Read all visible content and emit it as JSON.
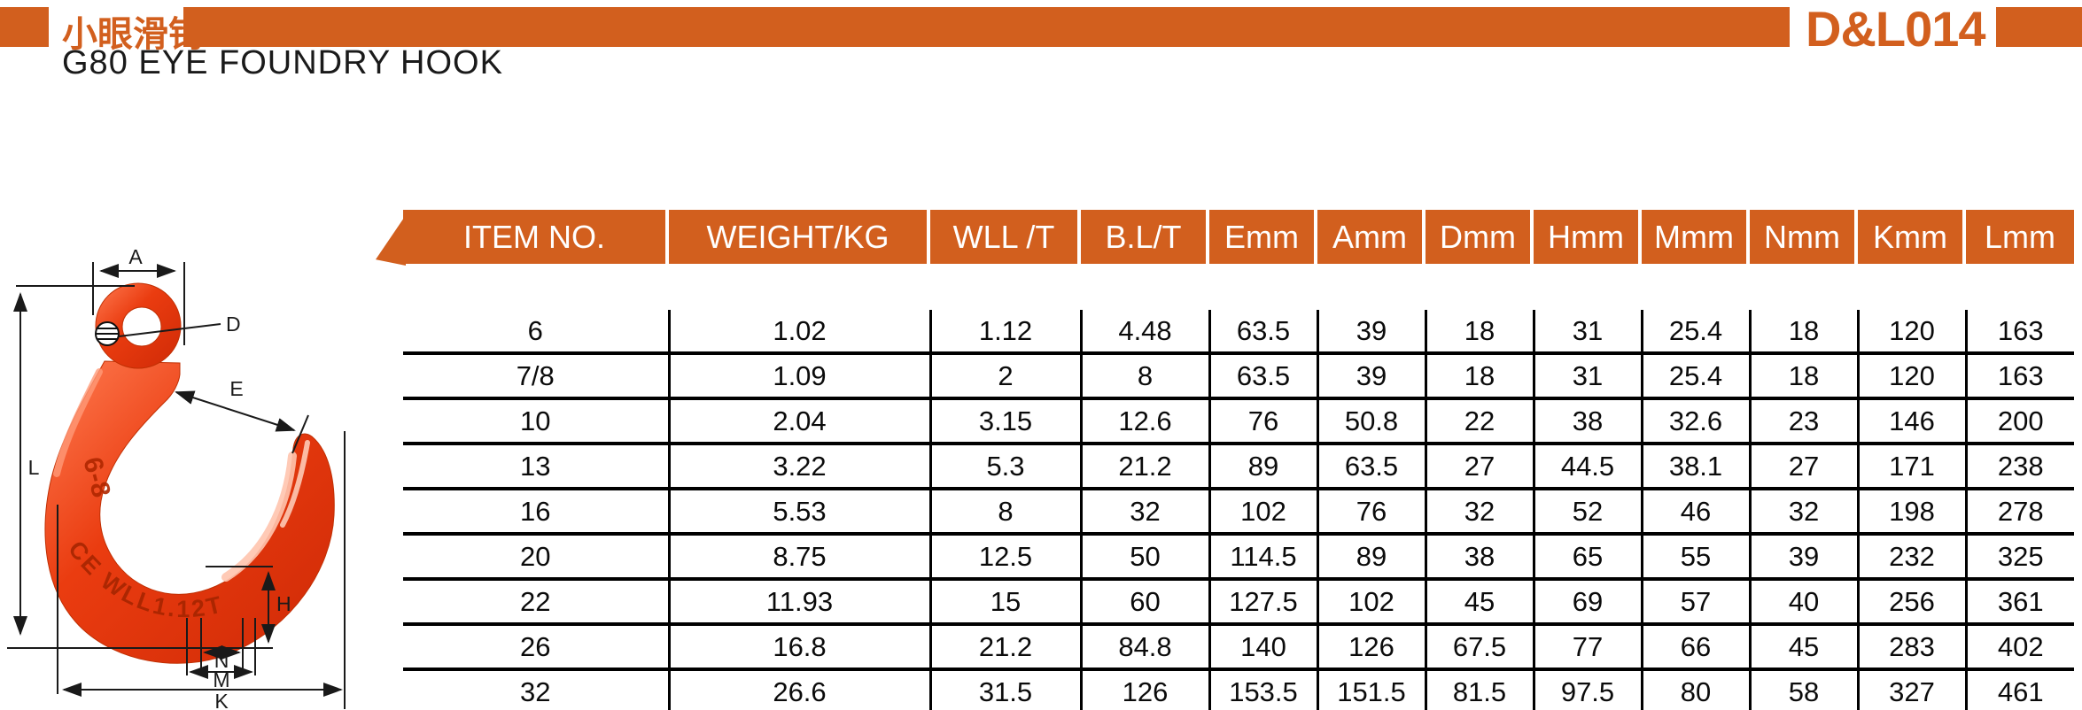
{
  "header": {
    "chinese_title": "小眼滑钩",
    "english_title": "G80 EYE FOUNDRY HOOK",
    "product_code": "D&L014"
  },
  "colors": {
    "accent_orange": "#d25f1e",
    "hook_red": "#e83a0e",
    "table_line": "#000000"
  },
  "table": {
    "columns": [
      "ITEM NO.",
      "WEIGHT/KG",
      "WLL /T",
      "B.L/T",
      "Emm",
      "Amm",
      "Dmm",
      "Hmm",
      "Mmm",
      "Nmm",
      "Kmm",
      "Lmm"
    ],
    "rows": [
      [
        "6",
        "1.02",
        "1.12",
        "4.48",
        "63.5",
        "39",
        "18",
        "31",
        "25.4",
        "18",
        "120",
        "163"
      ],
      [
        "7/8",
        "1.09",
        "2",
        "8",
        "63.5",
        "39",
        "18",
        "31",
        "25.4",
        "18",
        "120",
        "163"
      ],
      [
        "10",
        "2.04",
        "3.15",
        "12.6",
        "76",
        "50.8",
        "22",
        "38",
        "32.6",
        "23",
        "146",
        "200"
      ],
      [
        "13",
        "3.22",
        "5.3",
        "21.2",
        "89",
        "63.5",
        "27",
        "44.5",
        "38.1",
        "27",
        "171",
        "238"
      ],
      [
        "16",
        "5.53",
        "8",
        "32",
        "102",
        "76",
        "32",
        "52",
        "46",
        "32",
        "198",
        "278"
      ],
      [
        "20",
        "8.75",
        "12.5",
        "50",
        "114.5",
        "89",
        "38",
        "65",
        "55",
        "39",
        "232",
        "325"
      ],
      [
        "22",
        "11.93",
        "15",
        "60",
        "127.5",
        "102",
        "45",
        "69",
        "57",
        "40",
        "256",
        "361"
      ],
      [
        "26",
        "16.8",
        "21.2",
        "84.8",
        "140",
        "126",
        "67.5",
        "77",
        "66",
        "45",
        "283",
        "402"
      ],
      [
        "32",
        "26.6",
        "31.5",
        "126",
        "153.5",
        "151.5",
        "81.5",
        "97.5",
        "80",
        "58",
        "327",
        "461"
      ]
    ]
  },
  "drawing": {
    "dimension_labels": {
      "a": "A",
      "d": "D",
      "e": "E",
      "l": "L",
      "h": "H",
      "n": "N",
      "m": "M",
      "k": "K"
    },
    "embossed_mark": "6-8",
    "embossed_wll": "CE WLL1.12T"
  }
}
